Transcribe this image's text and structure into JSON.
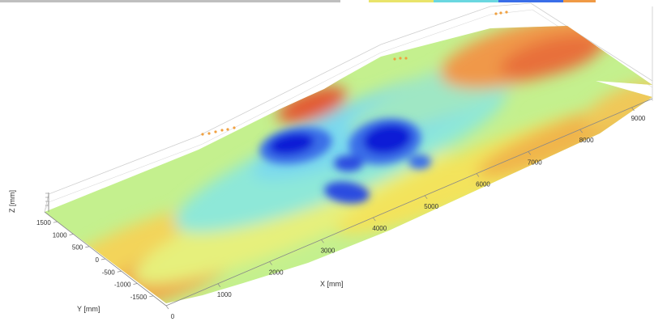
{
  "chart_data": {
    "type": "heatmap",
    "subtype": "3d-surface-point-cloud",
    "colormap": "jet",
    "view": "3d-perspective",
    "grid": true,
    "xlabel": "X [mm]",
    "ylabel": "Y [mm]",
    "zlabel": "Z [mm]",
    "xlim": [
      0,
      9400
    ],
    "ylim": [
      -1900,
      1900
    ],
    "x_ticks": [
      0,
      1000,
      2000,
      3000,
      4000,
      5000,
      6000,
      7000,
      8000,
      9000
    ],
    "x_tick_labels": [
      "0",
      "1000",
      "2000",
      "3000",
      "4000",
      "5000",
      "6000",
      "7000",
      "8000",
      "9000"
    ],
    "y_ticks": [
      1500,
      1000,
      500,
      0,
      -500,
      -1000,
      -1500
    ],
    "y_tick_labels": [
      "1500",
      "1000",
      "500",
      "0",
      "-500",
      "-1000",
      "-1500"
    ],
    "colors": {
      "deep_blue": "#0a1fd6",
      "blue": "#3a6ee8",
      "cyan": "#74e3ef",
      "light_green": "#b6ef9a",
      "yellow": "#f5ef5c",
      "orange": "#f09a45",
      "red": "#e0452a",
      "grid_line": "#d9d9d9",
      "axis_line": "#888888"
    }
  }
}
